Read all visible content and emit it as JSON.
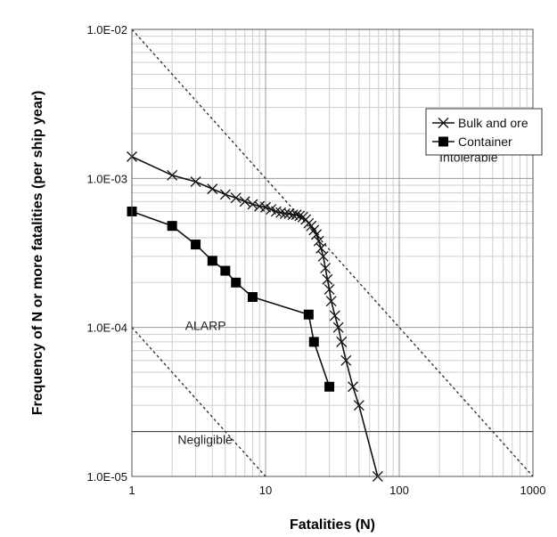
{
  "chart_data": {
    "type": "line",
    "xscale": "log",
    "yscale": "log",
    "xlim": [
      1,
      1000
    ],
    "ylim": [
      1e-05,
      0.01
    ],
    "xlabel": "Fatalities (N)",
    "ylabel": "Frequency of N or more fatalities (per ship year)",
    "x_ticks": [
      {
        "value": 1,
        "label": "1"
      },
      {
        "value": 10,
        "label": "10"
      },
      {
        "value": 100,
        "label": "100"
      },
      {
        "value": 1000,
        "label": "1000"
      }
    ],
    "y_ticks": [
      {
        "value": 0.01,
        "label": "1.0E-02"
      },
      {
        "value": 0.001,
        "label": "1.0E-03"
      },
      {
        "value": 0.0001,
        "label": "1.0E-04"
      },
      {
        "value": 1e-05,
        "label": "1.0E-05"
      }
    ],
    "grid": true,
    "legend_position": "top-right",
    "series": [
      {
        "name": "Bulk and ore",
        "marker": "x",
        "x": [
          1,
          2,
          3,
          4,
          5,
          6,
          7,
          8,
          9,
          10,
          11,
          12,
          13,
          14,
          15,
          16,
          17,
          18,
          19,
          20,
          21,
          22,
          23,
          24,
          25,
          26,
          27,
          28,
          29,
          30,
          31,
          33,
          35,
          37,
          40,
          45,
          50,
          69
        ],
        "y": [
          0.0014,
          0.00105,
          0.00095,
          0.00085,
          0.00078,
          0.00074,
          0.0007,
          0.00067,
          0.00065,
          0.00064,
          0.00062,
          0.0006,
          0.00059,
          0.00058,
          0.00058,
          0.00057,
          0.00057,
          0.00056,
          0.00055,
          0.00053,
          0.0005,
          0.00048,
          0.00045,
          0.00042,
          0.00038,
          0.00034,
          0.0003,
          0.00025,
          0.00021,
          0.00018,
          0.00015,
          0.00012,
          0.0001,
          8e-05,
          6e-05,
          4e-05,
          3e-05,
          1e-05
        ]
      },
      {
        "name": "Container",
        "marker": "square",
        "x": [
          1,
          2,
          3,
          4,
          5,
          6,
          8,
          21,
          23,
          30
        ],
        "y": [
          0.0006,
          0.00048,
          0.00036,
          0.00028,
          0.00024,
          0.0002,
          0.00016,
          0.000122,
          8e-05,
          4e-05
        ]
      }
    ],
    "criteria_lines": [
      {
        "name": "upper",
        "style": "dashed",
        "points": [
          [
            1,
            0.01
          ],
          [
            1000,
            1e-05
          ]
        ]
      },
      {
        "name": "lower",
        "style": "dashed",
        "points": [
          [
            1,
            0.0001
          ],
          [
            10,
            1e-05
          ]
        ]
      },
      {
        "name": "negligible",
        "style": "solid",
        "points": [
          [
            1,
            2e-05
          ],
          [
            1000,
            2e-05
          ]
        ]
      }
    ],
    "regions": [
      {
        "label": "Intolerable",
        "x": 200,
        "y": 0.0013
      },
      {
        "label": "ALARP",
        "x": 2.5,
        "y": 9.6e-05
      },
      {
        "label": "Negligible",
        "x": 2.2,
        "y": 1.65e-05
      }
    ]
  }
}
